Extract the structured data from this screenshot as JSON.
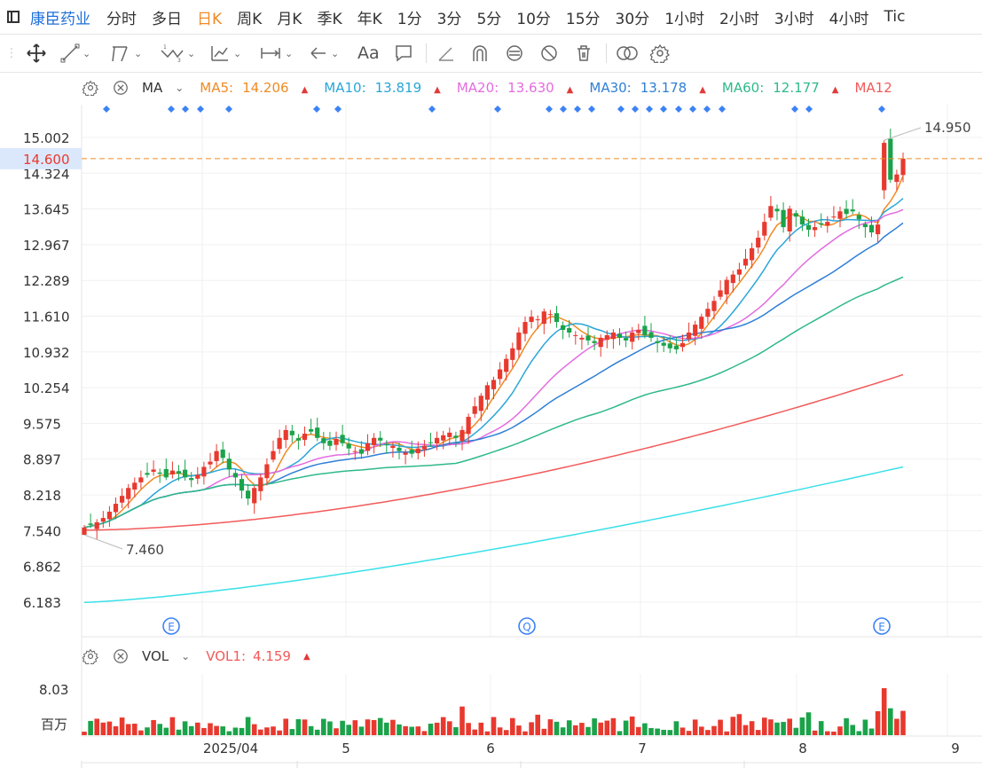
{
  "stock_name": "康臣药业",
  "timeframes": [
    "分时",
    "多日",
    "日K",
    "周K",
    "月K",
    "季K",
    "年K",
    "1分",
    "3分",
    "5分",
    "10分",
    "15分",
    "30分",
    "1小时",
    "2小时",
    "3小时",
    "4小时",
    "Tic"
  ],
  "active_timeframe": "日K",
  "toolbar": {
    "text_tool_label": "Aa"
  },
  "indicator": {
    "name": "MA",
    "items": [
      {
        "label": "MA5:",
        "value": "14.206",
        "color": "#f08a24"
      },
      {
        "label": "MA10:",
        "value": "13.819",
        "color": "#2aa6d8"
      },
      {
        "label": "MA20:",
        "value": "13.630",
        "color": "#e36ce0"
      },
      {
        "label": "MA30:",
        "value": "13.178",
        "color": "#2f7fd6"
      },
      {
        "label": "MA60:",
        "value": "12.177",
        "color": "#2fb98a"
      },
      {
        "label": "MA12",
        "value": "",
        "color": "#f25a5a"
      }
    ]
  },
  "price_axis": [
    "15.002",
    "14.324",
    "13.645",
    "12.967",
    "12.289",
    "11.610",
    "10.932",
    "10.254",
    "9.575",
    "8.897",
    "8.218",
    "7.540",
    "6.862",
    "6.183"
  ],
  "current_price": "14.600",
  "high_label": "14.950",
  "low_label": "7.460",
  "events": [
    "E",
    "Q",
    "E"
  ],
  "volume": {
    "name": "VOL",
    "label": "VOL1:",
    "value": "4.159",
    "axis_value": "8.03",
    "axis_unit": "百万"
  },
  "x_axis": [
    "2025/04",
    "5",
    "6",
    "7",
    "8",
    "9"
  ],
  "colors": {
    "up": "#e8392f",
    "down": "#1aa34a",
    "dot": "#3b82f6",
    "ma120": "#f25a5a",
    "ma250": "#39e0e8"
  },
  "chart_data": {
    "type": "candlestick",
    "ylim": [
      6.0,
      15.3
    ],
    "approx_closes": [
      7.6,
      7.65,
      7.7,
      7.78,
      7.9,
      8.05,
      8.2,
      8.35,
      8.45,
      8.55,
      8.6,
      8.7,
      8.62,
      8.55,
      8.68,
      8.62,
      8.55,
      8.5,
      8.6,
      8.75,
      8.85,
      9.05,
      8.92,
      8.7,
      8.55,
      8.3,
      8.15,
      8.35,
      8.55,
      8.8,
      9.05,
      9.3,
      9.45,
      9.35,
      9.25,
      9.38,
      9.42,
      9.3,
      9.2,
      9.15,
      9.28,
      9.2,
      9.1,
      9.05,
      9.0,
      9.2,
      9.3,
      9.25,
      9.18,
      9.15,
      9.05,
      9.02,
      9.0,
      9.1,
      9.15,
      9.2,
      9.3,
      9.35,
      9.4,
      9.3,
      9.45,
      9.7,
      9.9,
      10.1,
      10.3,
      10.4,
      10.6,
      10.8,
      11.0,
      11.3,
      11.5,
      11.6,
      11.55,
      11.7,
      11.65,
      11.5,
      11.35,
      11.3,
      11.25,
      11.2,
      11.15,
      11.1,
      11.2,
      11.25,
      11.3,
      11.2,
      11.15,
      11.3,
      11.35,
      11.25,
      11.2,
      11.1,
      11.05,
      11.0,
      10.98,
      11.1,
      11.3,
      11.45,
      11.6,
      11.75,
      11.9,
      12.1,
      12.3,
      12.4,
      12.5,
      12.7,
      12.9,
      13.1,
      13.4,
      13.7,
      13.6,
      13.3,
      13.65,
      13.5,
      13.35,
      13.25,
      13.3,
      13.35,
      13.4,
      13.5,
      13.6,
      13.55,
      13.6,
      13.45,
      13.3,
      13.2,
      13.35,
      14.9,
      14.2,
      14.3,
      14.6
    ],
    "ma_lines": {
      "MA5": 14.206,
      "MA10": 13.819,
      "MA20": 13.63,
      "MA30": 13.178,
      "MA60": 12.177
    },
    "high": 14.95,
    "low": 7.46,
    "last": 14.6
  }
}
